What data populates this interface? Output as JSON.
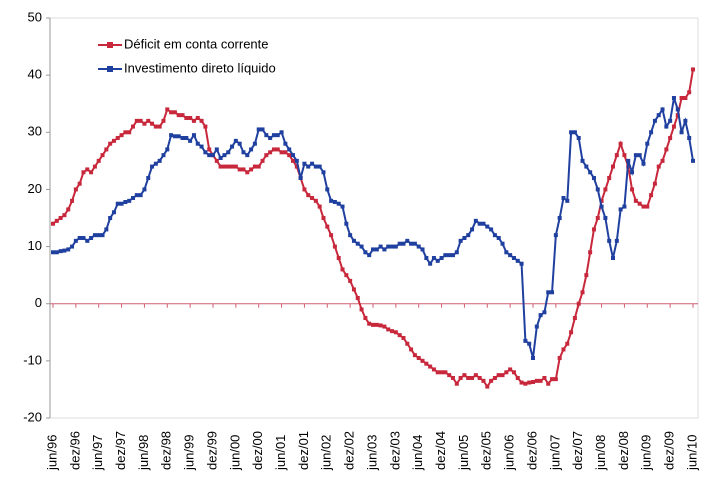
{
  "chart_data": {
    "type": "line",
    "categories": [
      "jun/96",
      null,
      null,
      null,
      null,
      null,
      "dez/96",
      null,
      null,
      null,
      null,
      null,
      "jun/97",
      null,
      null,
      null,
      null,
      null,
      "dez/97",
      null,
      null,
      null,
      null,
      null,
      "jun/98",
      null,
      null,
      null,
      null,
      null,
      "dez/98",
      null,
      null,
      null,
      null,
      null,
      "jun/99",
      null,
      null,
      null,
      null,
      null,
      "dez/99",
      null,
      null,
      null,
      null,
      null,
      "jun/00",
      null,
      null,
      null,
      null,
      null,
      "dez/00",
      null,
      null,
      null,
      null,
      null,
      "jun/01",
      null,
      null,
      null,
      null,
      null,
      "dez/01",
      null,
      null,
      null,
      null,
      null,
      "jun/02",
      null,
      null,
      null,
      null,
      null,
      "dez/02",
      null,
      null,
      null,
      null,
      null,
      "jun/03",
      null,
      null,
      null,
      null,
      null,
      "dez/03",
      null,
      null,
      null,
      null,
      null,
      "jun/04",
      null,
      null,
      null,
      null,
      null,
      "dez/04",
      null,
      null,
      null,
      null,
      null,
      "jun/05",
      null,
      null,
      null,
      null,
      null,
      "dez/05",
      null,
      null,
      null,
      null,
      null,
      "jun/06",
      null,
      null,
      null,
      null,
      null,
      "dez/06",
      null,
      null,
      null,
      null,
      null,
      "jun/07",
      null,
      null,
      null,
      null,
      null,
      "dez/07",
      null,
      null,
      null,
      null,
      null,
      "jun/08",
      null,
      null,
      null,
      null,
      null,
      "dez/08",
      null,
      null,
      null,
      null,
      null,
      "jun/09",
      null,
      null,
      null,
      null,
      null,
      "dez/09",
      null,
      null,
      null,
      null,
      null,
      "jun/10"
    ],
    "series": [
      {
        "name": "Déficit em conta corrente",
        "color": "#c8283c",
        "values": [
          14,
          14.5,
          15,
          15.5,
          16.5,
          18,
          20,
          21,
          23,
          23.5,
          23,
          24,
          25,
          26,
          27,
          28,
          28.5,
          29,
          29.5,
          30,
          30,
          31,
          32,
          32,
          31.5,
          32,
          31.5,
          31,
          31,
          32,
          34,
          33.5,
          33.5,
          33,
          33,
          32.5,
          32.5,
          32,
          32.5,
          32,
          31,
          27,
          26,
          25,
          24,
          24,
          24,
          24,
          24,
          23.5,
          23.5,
          23,
          23.5,
          24,
          24,
          25,
          26,
          26.5,
          27,
          27,
          26.5,
          26.5,
          26,
          25,
          24,
          22,
          20,
          19,
          18.5,
          18,
          17,
          15,
          13.5,
          12,
          10,
          8,
          6,
          5,
          4,
          2.5,
          1,
          -1,
          -2.5,
          -3.5,
          -3.7,
          -3.7,
          -3.8,
          -4,
          -4.5,
          -4.8,
          -5,
          -5.5,
          -6,
          -7,
          -8,
          -9,
          -9.5,
          -10,
          -10.5,
          -11,
          -11.5,
          -12,
          -12,
          -12,
          -12.5,
          -13,
          -14,
          -13,
          -12.5,
          -13,
          -13,
          -12.5,
          -13,
          -13.5,
          -14.5,
          -13.5,
          -13,
          -12.5,
          -12.5,
          -12,
          -11.5,
          -12,
          -13,
          -13.8,
          -14,
          -13.8,
          -13.7,
          -13.5,
          -13.5,
          -13,
          -14,
          -13.2,
          -13.2,
          -9.5,
          -8,
          -7,
          -5,
          -2.5,
          0,
          2,
          5,
          9,
          13,
          15,
          18,
          20,
          22,
          24,
          26,
          28,
          26,
          24,
          20,
          18,
          17.5,
          17,
          17,
          19,
          21,
          24,
          25,
          27,
          29,
          31,
          33,
          36,
          36,
          37,
          41
        ]
      },
      {
        "name": "Investimento direto líquido",
        "color": "#2040a0",
        "values": [
          9,
          9,
          9.2,
          9.3,
          9.5,
          10,
          11,
          11.5,
          11.5,
          11,
          11.5,
          12,
          12,
          12,
          13,
          15,
          16,
          17.5,
          17.5,
          17.8,
          18,
          18.5,
          19,
          19,
          20,
          22,
          24,
          24.5,
          25,
          26,
          27,
          29.5,
          29.3,
          29.3,
          29,
          29,
          28.5,
          29.5,
          28,
          27.5,
          26.5,
          26,
          26,
          27,
          25.5,
          26,
          26.5,
          27.5,
          28.5,
          28,
          26.5,
          26,
          27,
          28,
          30.5,
          30.5,
          29.5,
          29,
          29.5,
          29.5,
          30,
          28,
          27,
          26,
          25,
          22,
          24.5,
          24,
          24.5,
          24,
          24,
          23,
          20,
          18,
          17.8,
          17.5,
          17,
          14,
          12,
          11,
          10.5,
          10,
          9,
          8.5,
          9.5,
          9.5,
          10,
          9.5,
          10,
          10,
          10,
          10.5,
          10.5,
          11,
          10.5,
          10.5,
          10,
          9.5,
          8,
          7,
          8,
          7.5,
          8,
          8.5,
          8.5,
          8.5,
          9,
          11,
          11.5,
          12,
          13,
          14.5,
          14,
          14,
          13.5,
          13,
          12,
          11.5,
          10.5,
          9,
          8.5,
          8,
          7.5,
          7,
          -6.5,
          -7,
          -9.5,
          -4,
          -2,
          -1.5,
          2,
          2,
          12,
          15,
          18.5,
          18,
          30,
          30,
          29,
          25,
          24,
          23,
          22,
          20,
          17,
          15,
          11,
          8,
          11,
          16.5,
          17,
          25,
          23,
          26,
          26,
          24.5,
          28,
          30,
          32,
          33,
          34,
          31,
          32,
          36,
          34,
          30,
          32,
          29,
          25
        ]
      }
    ],
    "ylim": [
      -20,
      50
    ],
    "yticks": [
      -20,
      -10,
      0,
      10,
      20,
      30,
      40,
      50
    ],
    "legend": "upper-left"
  }
}
